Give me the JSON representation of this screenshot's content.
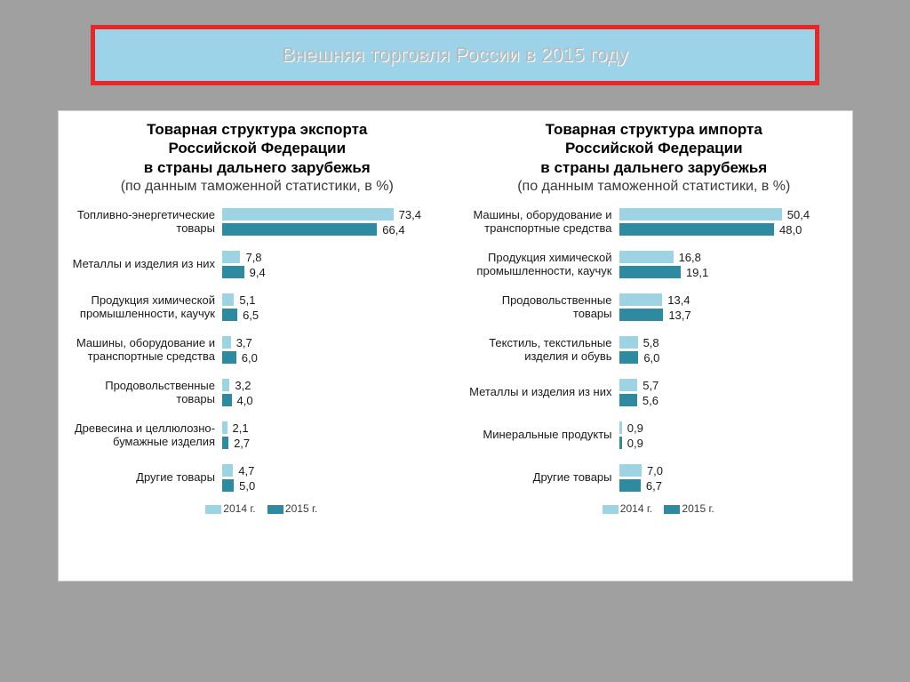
{
  "header": {
    "title": "Внешняя торговля России в 2015 году",
    "bg_color": "#9dd3e8",
    "border_color": "#e82828",
    "title_color": "#b8b8b8"
  },
  "colors": {
    "series_2014": "#9ed3e4",
    "series_2015": "#2e8aa0",
    "panel_bg": "#ffffff",
    "text": "#1a1a1a"
  },
  "legend": {
    "label_2014": "2014 г.",
    "label_2015": "2015 г."
  },
  "export_chart": {
    "type": "bar",
    "title_l1": "Товарная структура экспорта",
    "title_l2": "Российской Федерации",
    "title_l3": "в страны дальнего зарубежья",
    "subtitle": "(по данным таможенной статистики, в %)",
    "max_value": 80,
    "categories": [
      {
        "label": "Топливно-энергетические товары",
        "v2014": 73.4,
        "v2015": 66.4,
        "d2014": "73,4",
        "d2015": "66,4"
      },
      {
        "label": "Металлы и изделия из них",
        "v2014": 7.8,
        "v2015": 9.4,
        "d2014": "7,8",
        "d2015": "9,4"
      },
      {
        "label": "Продукция химической промышленности, каучук",
        "v2014": 5.1,
        "v2015": 6.5,
        "d2014": "5,1",
        "d2015": "6,5"
      },
      {
        "label": "Машины, оборудование и транспортные средства",
        "v2014": 3.7,
        "v2015": 6.0,
        "d2014": "3,7",
        "d2015": "6,0"
      },
      {
        "label": "Продовольственные товары",
        "v2014": 3.2,
        "v2015": 4.0,
        "d2014": "3,2",
        "d2015": "4,0"
      },
      {
        "label": "Древесина и целлюлозно-бумажные изделия",
        "v2014": 2.1,
        "v2015": 2.7,
        "d2014": "2,1",
        "d2015": "2,7"
      },
      {
        "label": "Другие товары",
        "v2014": 4.7,
        "v2015": 5.0,
        "d2014": "4,7",
        "d2015": "5,0"
      }
    ]
  },
  "import_chart": {
    "type": "bar",
    "title_l1": "Товарная структура импорта",
    "title_l2": "Российской Федерации",
    "title_l3": "в страны дальнего зарубежья",
    "subtitle": "(по данным таможенной статистики, в %)",
    "max_value": 55,
    "categories": [
      {
        "label": "Машины, оборудование и транспортные средства",
        "v2014": 50.4,
        "v2015": 48.0,
        "d2014": "50,4",
        "d2015": "48,0"
      },
      {
        "label": "Продукция химической промышленности, каучук",
        "v2014": 16.8,
        "v2015": 19.1,
        "d2014": "16,8",
        "d2015": "19,1"
      },
      {
        "label": "Продовольственные товары",
        "v2014": 13.4,
        "v2015": 13.7,
        "d2014": "13,4",
        "d2015": "13,7"
      },
      {
        "label": "Текстиль, текстильные изделия и обувь",
        "v2014": 5.8,
        "v2015": 6.0,
        "d2014": "5,8",
        "d2015": "6,0"
      },
      {
        "label": "Металлы и изделия из них",
        "v2014": 5.7,
        "v2015": 5.6,
        "d2014": "5,7",
        "d2015": "5,6"
      },
      {
        "label": "Минеральные продукты",
        "v2014": 0.9,
        "v2015": 0.9,
        "d2014": "0,9",
        "d2015": "0,9"
      },
      {
        "label": "Другие товары",
        "v2014": 7.0,
        "v2015": 6.7,
        "d2014": "7,0",
        "d2015": "6,7"
      }
    ]
  }
}
